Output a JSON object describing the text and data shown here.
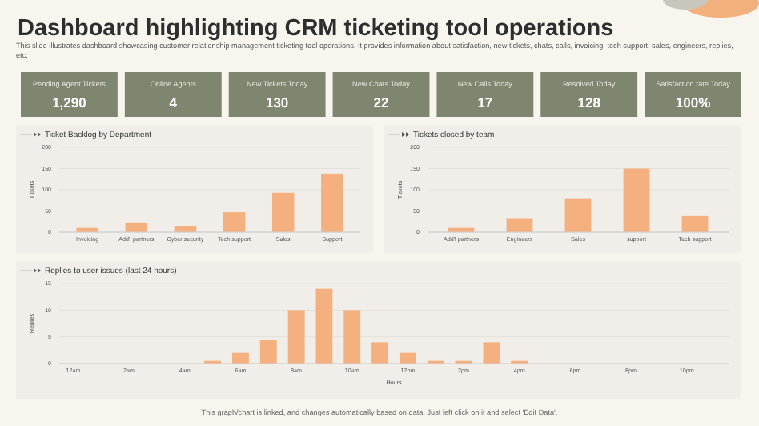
{
  "chart_data": [
    {
      "type": "other",
      "title": "Dashboard highlighting CRM ticketing tool operations",
      "subtitle": "This slide illustrates dashboard showcasing customer relationship management ticketing tool operations. It provides information about satisfaction, new tickets, chats, calls, invoicing, tech support, sales, engineers, replies, etc.",
      "annotations": [
        "This graph/chart is linked, and changes automatically based on data. Just left click on it and select 'Edit Data'."
      ],
      "categories": [
        "Pending Agent Tickets",
        "Online Agents",
        "New Tickets Today",
        "New Chats Today",
        "New Calls Today",
        "Resolved Today",
        "Satisfaction rate Today"
      ],
      "value_labels": [
        "1,290",
        "4",
        "130",
        "22",
        "17",
        "128",
        "100%"
      ],
      "color": "#7e8670"
    },
    {
      "type": "bar",
      "title": "Ticket Backlog by Department",
      "ylabel": "Tickets",
      "categories": [
        "Invoicing",
        "Add'l partners",
        "Cyber security",
        "Tech support",
        "Sales",
        "Support"
      ],
      "values": [
        10,
        23,
        15,
        47,
        93,
        138
      ],
      "color": "#f5b07f",
      "ylim": [
        0,
        200
      ],
      "yticks": [
        0,
        50,
        100,
        150,
        200
      ],
      "grid": "y"
    },
    {
      "type": "bar",
      "title": "Tickets closed by team",
      "ylabel": "Tickets",
      "categories": [
        "Add'l partners",
        "Engineers",
        "Sales",
        "support",
        "Tech support"
      ],
      "values": [
        10,
        33,
        80,
        150,
        38
      ],
      "color": "#f5b07f",
      "ylim": [
        0,
        200
      ],
      "yticks": [
        0,
        50,
        100,
        150,
        200
      ],
      "grid": "y"
    },
    {
      "type": "bar",
      "title": "Replies to user issues (last 24 hours)",
      "xlabel": "Hours",
      "ylabel": "Replies",
      "categories": [
        "12am",
        null,
        "2am",
        null,
        "4am",
        null,
        "6am",
        null,
        "8am",
        null,
        "10am",
        null,
        "12pm",
        null,
        "2pm",
        null,
        "4pm",
        null,
        "6pm",
        null,
        "8pm",
        null,
        "10pm",
        null
      ],
      "values": [
        0,
        0,
        0,
        0,
        0,
        0.5,
        2,
        4.5,
        10,
        14,
        10,
        4,
        2,
        0.5,
        0.5,
        4,
        0.5,
        0,
        0,
        0,
        0,
        0,
        0,
        0
      ],
      "color": "#f5b07f",
      "ylim": [
        0,
        15
      ],
      "yticks": [
        0,
        5,
        10,
        15
      ],
      "grid": "y"
    }
  ]
}
